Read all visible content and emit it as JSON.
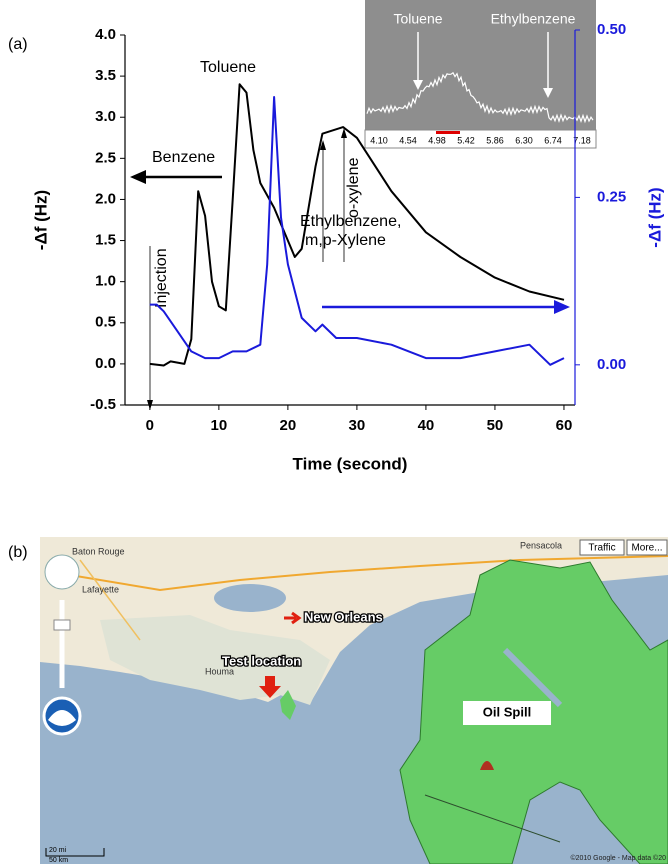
{
  "chart_data": {
    "type": "line",
    "panel_label": "(a)",
    "xlabel": "Time (second)",
    "ylabel": "-Δf (Hz)",
    "y2label": "-Δf (Hz)",
    "xlim": [
      -3.6,
      61.6
    ],
    "xticks": [
      0,
      10,
      20,
      30,
      40,
      50,
      60
    ],
    "ylim": [
      -0.5,
      4.0
    ],
    "yticks": [
      -0.5,
      {
        "value": 0,
        "label": "0.0"
      },
      0.5,
      {
        "value": 1,
        "label": "1.0"
      },
      1.5,
      {
        "value": 2,
        "label": "2.0"
      },
      2.5,
      {
        "value": 3,
        "label": "3.0"
      },
      3.5,
      {
        "value": 4,
        "label": "4.0"
      }
    ],
    "y2lim": [
      -0.06,
      0.5
    ],
    "y2ticks": [
      {
        "value": 0,
        "label": "0.00"
      },
      {
        "value": 0.25,
        "label": "0.25"
      },
      {
        "value": 0.5,
        "label": "0.50"
      }
    ],
    "y2color": "#1a1adb",
    "series": [
      {
        "color": "#000000",
        "x": [
          0,
          2,
          3,
          5,
          6,
          7,
          8,
          9,
          10,
          11,
          12,
          13,
          14,
          15,
          16,
          18,
          20,
          21,
          22,
          24,
          25,
          28,
          30,
          35,
          40,
          45,
          50,
          55,
          60
        ],
        "values": [
          0,
          -0.02,
          0.03,
          0,
          0.3,
          2.1,
          1.8,
          1.0,
          0.7,
          0.65,
          2.0,
          3.4,
          3.3,
          2.6,
          2.2,
          1.9,
          1.5,
          1.3,
          1.4,
          2.4,
          2.8,
          2.88,
          2.75,
          2.1,
          1.6,
          1.3,
          1.05,
          0.88,
          0.78
        ]
      },
      {
        "color": "#1a1adb",
        "axis": "y2",
        "x": [
          0,
          1,
          2,
          4,
          6,
          8,
          10,
          12,
          14,
          16,
          17,
          18,
          19,
          20,
          22,
          24,
          25,
          27,
          30,
          35,
          40,
          45,
          50,
          55,
          58,
          60
        ],
        "values": [
          0.09,
          0.09,
          0.08,
          0.05,
          0.02,
          0.01,
          0.01,
          0.02,
          0.02,
          0.03,
          0.15,
          0.4,
          0.22,
          0.15,
          0.07,
          0.05,
          0.06,
          0.04,
          0.04,
          0.03,
          0.01,
          0.01,
          0.02,
          0.03,
          0,
          0.01
        ]
      }
    ],
    "annotations": [
      "Benzene",
      "Toluene",
      "Ethylbenzene,",
      "m,p-Xylene",
      "o-xylene",
      "Injection"
    ],
    "inset": {
      "labels": [
        "Toluene",
        "Ethylbenzene"
      ],
      "ticks": [
        "4.10",
        "4.54",
        "4.98",
        "5.42",
        "5.86",
        "6.30",
        "6.74",
        "7.18"
      ]
    }
  },
  "panel_b": {
    "label": "(b)",
    "callouts": [
      "New Orleans",
      "Test location",
      "Oil Spill"
    ],
    "controls": [
      "Traffic",
      "More..."
    ],
    "places": [
      "Baton Rouge",
      "Lafayette",
      "Houma",
      "Pensacola"
    ],
    "scale": [
      "20 mi",
      "50 km"
    ],
    "attribution": "©2010 Google - Map data ©20"
  }
}
